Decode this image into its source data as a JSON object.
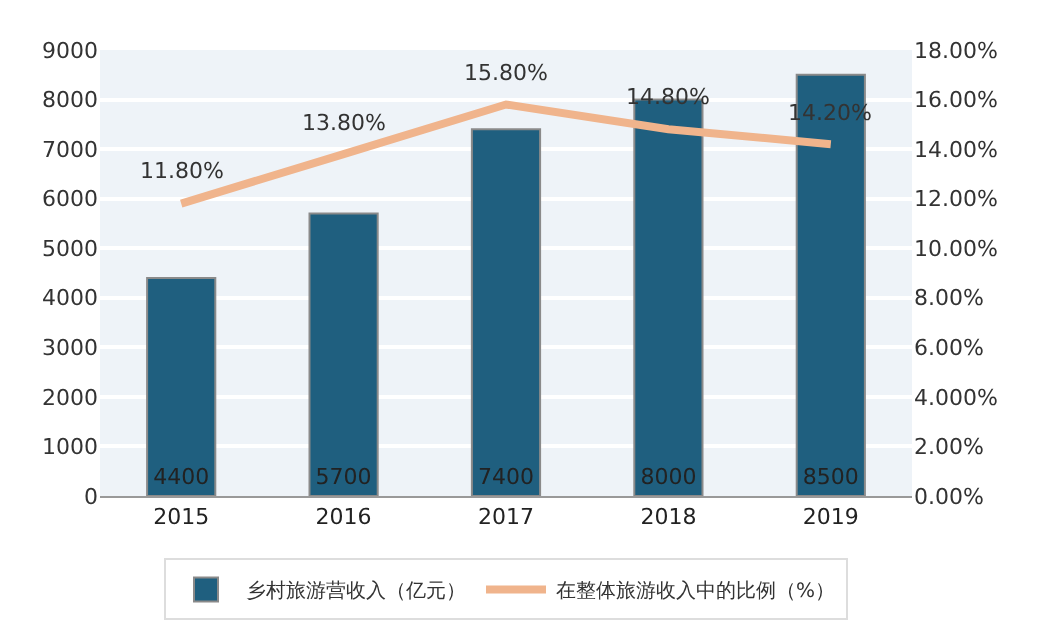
{
  "chart_data": {
    "type": "bar",
    "categories": [
      "2015",
      "2016",
      "2017",
      "2018",
      "2019"
    ],
    "series": [
      {
        "name": "乡村旅游营收入（亿元）",
        "color": "#1f5f7f",
        "values": [
          4400,
          5700,
          7400,
          8000,
          8500
        ],
        "value_labels": [
          "4400",
          "5700",
          "7400",
          "8000",
          "8500"
        ]
      },
      {
        "name": "在整体旅游收入中的比例（%）",
        "type": "line",
        "axis": "y2",
        "color": "#f0b48c",
        "values": [
          11.8,
          13.8,
          15.8,
          14.8,
          14.2
        ],
        "value_labels": [
          "11.80%",
          "13.80%",
          "15.80%",
          "14.80%",
          "14.20%"
        ]
      }
    ],
    "ylim": [
      0,
      9000
    ],
    "yticks": [
      0,
      1000,
      2000,
      3000,
      4000,
      5000,
      6000,
      7000,
      8000,
      9000
    ],
    "y2lim": [
      0,
      18
    ],
    "y2ticks": [
      {
        "value": 0,
        "label": "0.00%"
      },
      {
        "value": 2,
        "label": "2.00%"
      },
      {
        "value": 4,
        "label": "4.000%"
      },
      {
        "value": 6,
        "label": "6.00%"
      },
      {
        "value": 8,
        "label": "8.00%"
      },
      {
        "value": 10,
        "label": "10.00%"
      },
      {
        "value": 12,
        "label": "12.00%"
      },
      {
        "value": 14,
        "label": "14.00%"
      },
      {
        "value": 16,
        "label": "16.00%"
      },
      {
        "value": 18,
        "label": "18.00%"
      }
    ],
    "grid": "y",
    "legend": "bottom",
    "marker": "none"
  }
}
